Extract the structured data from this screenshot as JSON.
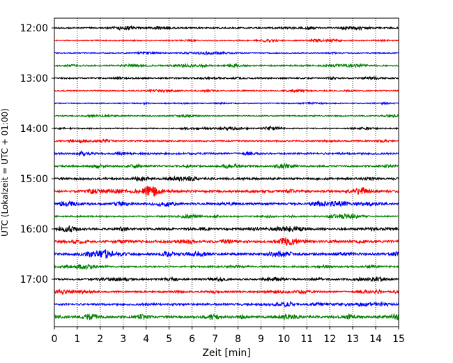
{
  "chart_data": {
    "type": "line",
    "title": "",
    "xlabel": "Zeit  [min]",
    "ylabel": "UTC (Lokalzeit = UTC + 01:00)",
    "xlim": [
      0,
      15
    ],
    "x_ticks": [
      "0",
      "1",
      "2",
      "3",
      "4",
      "5",
      "6",
      "7",
      "8",
      "9",
      "10",
      "11",
      "12",
      "13",
      "14",
      "15"
    ],
    "y_ticks": [
      "12:00",
      "13:00",
      "14:00",
      "15:00",
      "16:00",
      "17:00"
    ],
    "grid": "vertical dotted lines at each minute",
    "trace_interval_min": 15,
    "start_time": "12:00",
    "end_time": "17:45",
    "colors": [
      "#000000",
      "#ff0000",
      "#0000ff",
      "#008000"
    ],
    "traces": [
      {
        "time": "12:00",
        "amplitude": 0.6
      },
      {
        "time": "12:15",
        "amplitude": 0.5
      },
      {
        "time": "12:30",
        "amplitude": 0.4
      },
      {
        "time": "12:45",
        "amplitude": 0.6
      },
      {
        "time": "13:00",
        "amplitude": 0.6
      },
      {
        "time": "13:15",
        "amplitude": 0.5
      },
      {
        "time": "13:30",
        "amplitude": 0.4
      },
      {
        "time": "13:45",
        "amplitude": 0.5
      },
      {
        "time": "14:00",
        "amplitude": 0.5
      },
      {
        "time": "14:15",
        "amplitude": 0.6
      },
      {
        "time": "14:30",
        "amplitude": 0.8
      },
      {
        "time": "14:45",
        "amplitude": 0.7
      },
      {
        "time": "15:00",
        "amplitude": 0.9
      },
      {
        "time": "15:15",
        "amplitude": 1.0
      },
      {
        "time": "15:30",
        "amplitude": 0.9
      },
      {
        "time": "15:45",
        "amplitude": 0.6
      },
      {
        "time": "16:00",
        "amplitude": 0.9
      },
      {
        "time": "16:15",
        "amplitude": 1.0
      },
      {
        "time": "16:30",
        "amplitude": 1.0
      },
      {
        "time": "16:45",
        "amplitude": 0.7
      },
      {
        "time": "17:00",
        "amplitude": 0.7
      },
      {
        "time": "17:15",
        "amplitude": 0.7
      },
      {
        "time": "17:30",
        "amplitude": 0.8
      },
      {
        "time": "17:45",
        "amplitude": 1.0
      }
    ]
  }
}
